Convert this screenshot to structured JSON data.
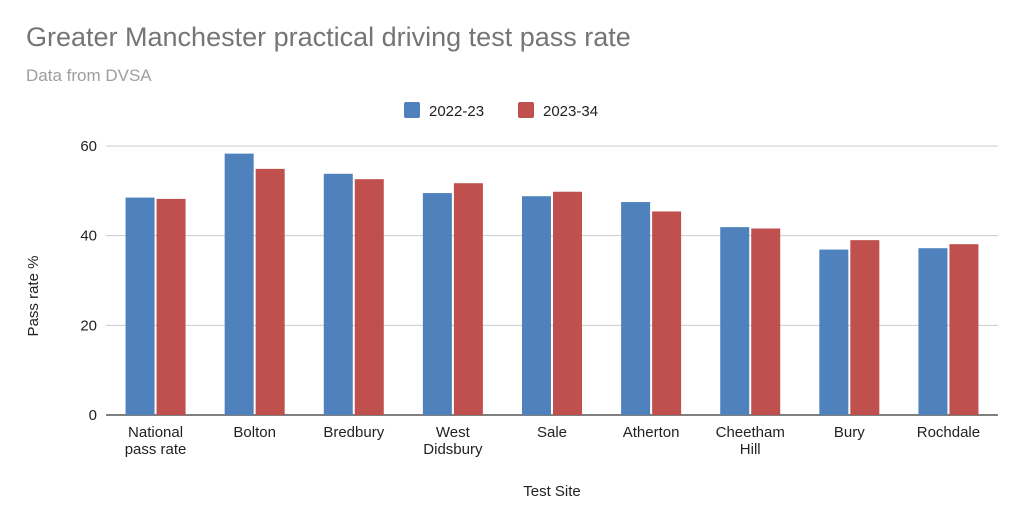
{
  "title": "Greater Manchester practical driving test pass rate",
  "subtitle": "Data from DVSA",
  "chart_data": {
    "type": "bar",
    "title": "Greater Manchester practical driving test pass rate",
    "subtitle": "Data from DVSA",
    "xlabel": "Test Site",
    "ylabel": "Pass rate %",
    "ylim": [
      0,
      60
    ],
    "yticks": [
      0,
      20,
      40,
      60
    ],
    "grid": true,
    "legend_position": "top",
    "categories": [
      [
        "National",
        "pass rate"
      ],
      [
        "Bolton"
      ],
      [
        "Bredbury"
      ],
      [
        "West",
        "Didsbury"
      ],
      [
        "Sale"
      ],
      [
        "Atherton"
      ],
      [
        "Cheetham",
        "Hill"
      ],
      [
        "Bury"
      ],
      [
        "Rochdale"
      ]
    ],
    "series": [
      {
        "name": "2022-23",
        "color": "#4f81bd",
        "values": [
          48.5,
          58.3,
          53.8,
          49.5,
          48.8,
          47.5,
          41.9,
          36.9,
          37.2
        ]
      },
      {
        "name": "2023-34",
        "color": "#c0504d",
        "values": [
          48.2,
          54.9,
          52.6,
          51.7,
          49.8,
          45.4,
          41.6,
          39.0,
          38.1
        ]
      }
    ]
  }
}
